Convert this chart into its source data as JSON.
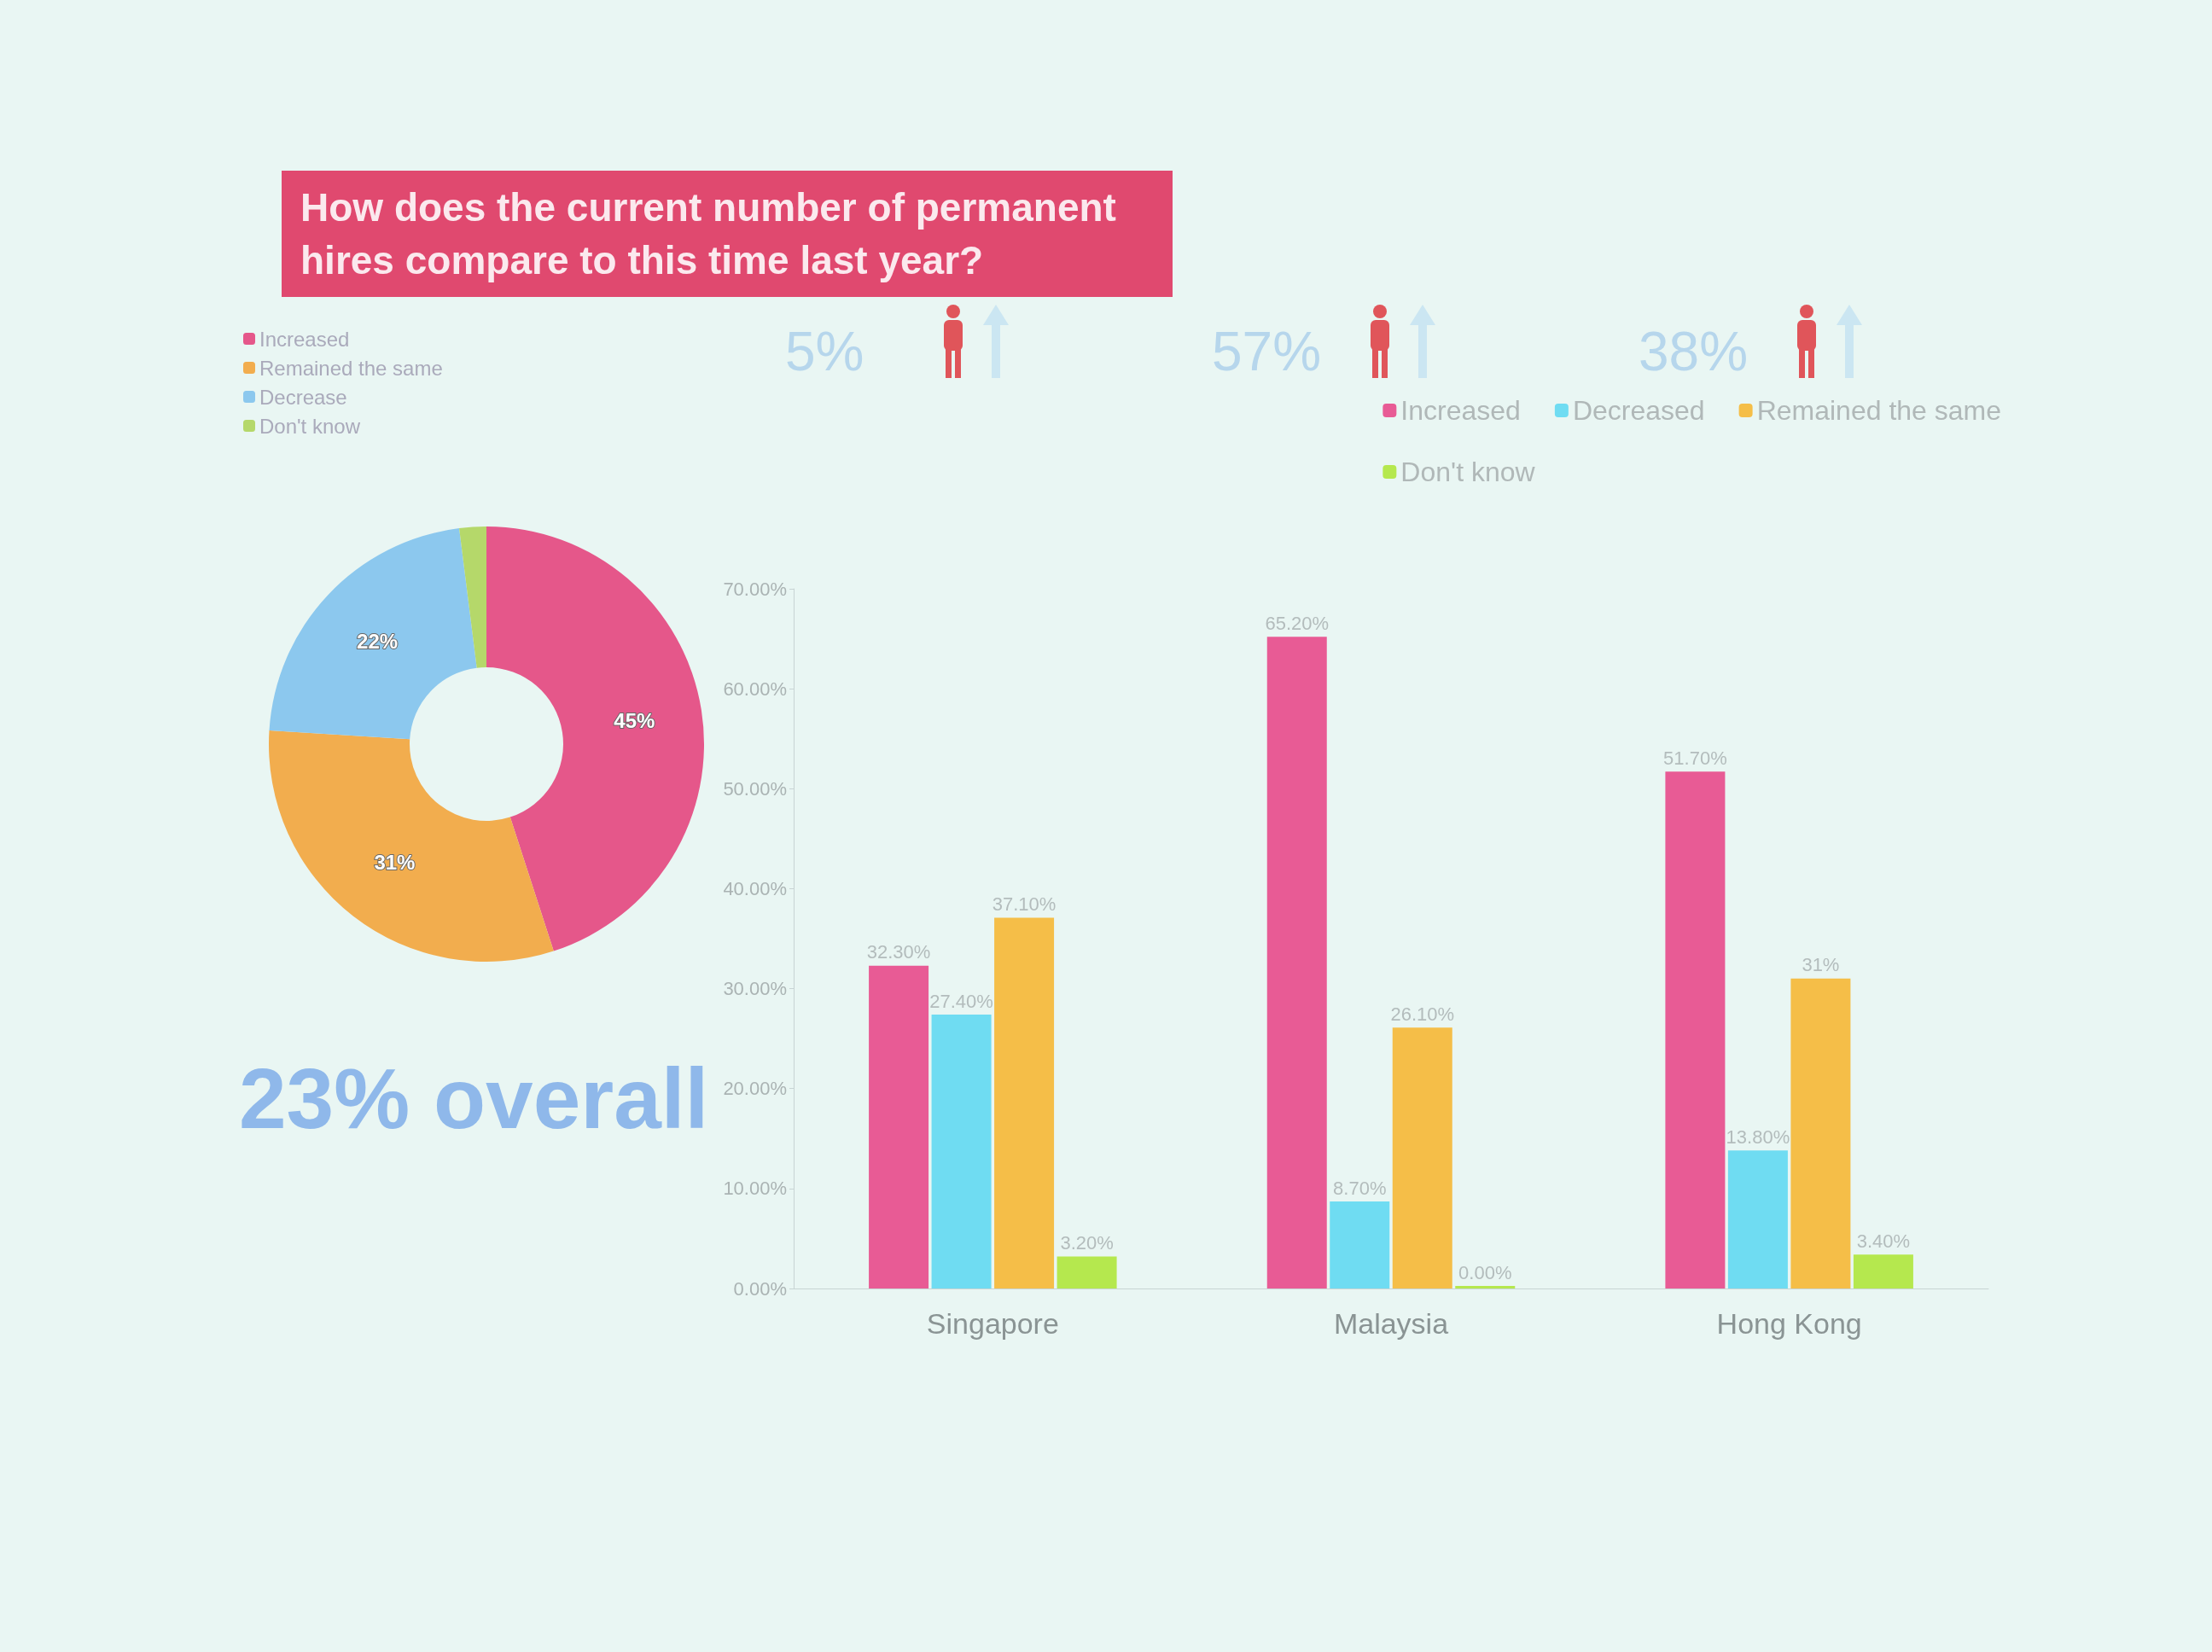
{
  "chart_data": [
    {
      "type": "donut",
      "title": "How does the current number of permanent hires compare to this time last year?",
      "categories": [
        "Increased",
        "Remained the same",
        "Decrease",
        "Don't know"
      ],
      "values": [
        45,
        31,
        22,
        2
      ],
      "colors": [
        "#e5578a",
        "#f2ad4e",
        "#8cc8ee",
        "#b5d86a"
      ],
      "value_labels": [
        "45%",
        "31%",
        "22%",
        null
      ],
      "legend": "top left",
      "annotations": [
        "23% overall"
      ]
    },
    {
      "type": "bar",
      "categories": [
        "Singapore",
        "Malaysia",
        "Hong Kong"
      ],
      "series": [
        {
          "name": "Increased",
          "color": "#e85b95",
          "values": [
            32.3,
            65.2,
            51.7
          ],
          "value_labels": [
            "32.30%",
            "65.20%",
            "51.70%"
          ]
        },
        {
          "name": "Decreased",
          "color": "#6fdcf2",
          "values": [
            27.4,
            8.7,
            13.8
          ],
          "value_labels": [
            "27.40%",
            "8.70%",
            "13.80%"
          ]
        },
        {
          "name": "Remained the same",
          "color": "#f5be48",
          "values": [
            37.1,
            26.1,
            31
          ],
          "value_labels": [
            "37.10%",
            "26.10%",
            "31%"
          ]
        },
        {
          "name": "Don't know",
          "color": "#b5e84e",
          "values": [
            3.2,
            0,
            3.4
          ],
          "value_labels": [
            "3.20%",
            "0.00%",
            "3.40%"
          ]
        }
      ],
      "ylim": [
        0,
        70
      ],
      "yticks": [
        {
          "value": 0,
          "label": "0.00%"
        },
        {
          "value": 10,
          "label": "10.00%"
        },
        {
          "value": 20,
          "label": "20.00%"
        },
        {
          "value": 30,
          "label": "30.00%"
        },
        {
          "value": 40,
          "label": "40.00%"
        },
        {
          "value": 50,
          "label": "50.00%"
        },
        {
          "value": 60,
          "label": "60.00%"
        },
        {
          "value": 70,
          "label": "70.00%"
        }
      ],
      "grid": false,
      "legend": "top right",
      "annotations": [
        "5%",
        "57%",
        "38%"
      ]
    }
  ]
}
